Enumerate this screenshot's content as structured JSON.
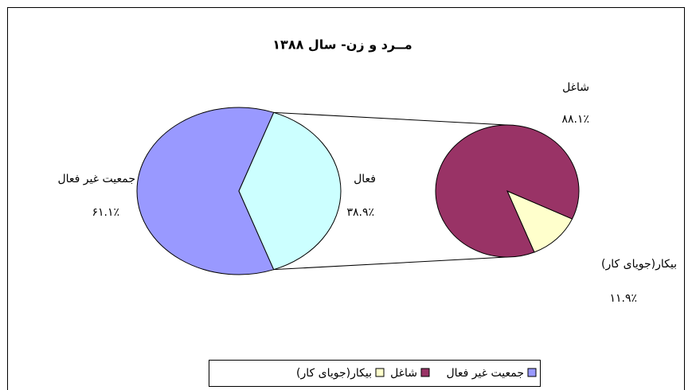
{
  "chart_data": {
    "type": "pie",
    "title": "مــرد و زن- سال ۱۳۸۸",
    "categories": [
      "جمعیت غیر فعال",
      "فعال"
    ],
    "values": [
      61.1,
      38.9
    ],
    "value_labels": [
      "۶۱.۱٪",
      "۳۸.۹٪"
    ],
    "colors": [
      "#9999ff",
      "#ccffff"
    ],
    "secondary": {
      "categories": [
        "شاغل",
        "بیکار(جویای کار)"
      ],
      "values": [
        88.1,
        11.9
      ],
      "value_labels": [
        "۸۸.۱٪",
        "۱۱.۹٪"
      ],
      "colors": [
        "#993366",
        "#ffffcc"
      ]
    },
    "legend": "bottom"
  }
}
